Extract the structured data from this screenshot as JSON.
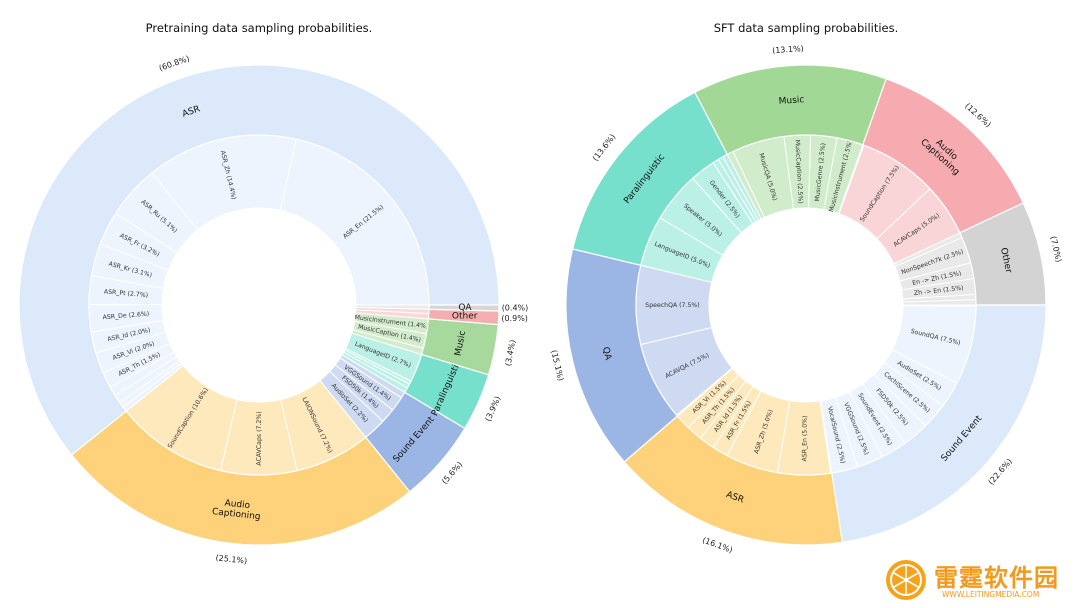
{
  "chart_data": [
    {
      "type": "sunburst",
      "title": "Pretraining data sampling probabilities.",
      "start_angle_deg": 0,
      "outer": [
        {
          "label": "ASR",
          "value": 60.8,
          "pct": "(60.8%)",
          "color": "#dbe9fa"
        },
        {
          "label": "Audio\nCaptioning",
          "value": 25.1,
          "pct": "(25.1%)",
          "color": "#fdd27a"
        },
        {
          "label": "Sound Event",
          "value": 5.6,
          "pct": "(5.6%)",
          "color": "#9bb5e4"
        },
        {
          "label": "Paralinguistic",
          "value": 3.9,
          "pct": "(3.9%)",
          "color": "#77e0cc"
        },
        {
          "label": "Music",
          "value": 3.4,
          "pct": "(3.4%)",
          "color": "#a6d99b"
        },
        {
          "label": "Other",
          "value": 0.9,
          "pct": "(0.9%)",
          "color": "#f5aeb0"
        },
        {
          "label": "QA",
          "value": 0.4,
          "pct": "(0.4%)",
          "color": "#d6d6d6"
        }
      ],
      "inner": [
        {
          "parent": 0,
          "items": [
            {
              "label": "ASR_En (21.5%)",
              "value": 21.5
            },
            {
              "label": "ASR_Zh (14.4%)",
              "value": 14.4
            },
            {
              "label": "ASR_Ru (5.1%)",
              "value": 5.1
            },
            {
              "label": "ASR_Fr (3.2%)",
              "value": 3.2
            },
            {
              "label": "ASR_Kr (3.1%)",
              "value": 3.1
            },
            {
              "label": "ASR_Pt (2.7%)",
              "value": 2.7
            },
            {
              "label": "ASR_De (2.6%)",
              "value": 2.6
            },
            {
              "label": "ASR_Id (2.0%)",
              "value": 2.0
            },
            {
              "label": "ASR_Vi (2.0%)",
              "value": 2.0
            },
            {
              "label": "ASR_Th (1.5%)",
              "value": 1.5
            },
            {
              "label": "",
              "value": 0.9
            },
            {
              "label": "",
              "value": 0.8
            },
            {
              "label": "",
              "value": 0.5
            },
            {
              "label": "",
              "value": 0.5
            }
          ]
        },
        {
          "parent": 1,
          "items": [
            {
              "label": "SoundCaption (10.6%)",
              "value": 10.6
            },
            {
              "label": "ACAVCaps (7.2%)",
              "value": 7.2
            },
            {
              "label": "LAIONSound (7.2%)",
              "value": 7.2
            }
          ]
        },
        {
          "parent": 2,
          "items": [
            {
              "label": "AudioSet (2.2%)",
              "value": 2.2
            },
            {
              "label": "FSD50k (1.4%)",
              "value": 1.4
            },
            {
              "label": "VGGSound (1.4%)",
              "value": 1.4
            },
            {
              "label": "",
              "value": 0.6
            }
          ]
        },
        {
          "parent": 3,
          "items": [
            {
              "label": "",
              "value": 0.5
            },
            {
              "label": "",
              "value": 0.4
            },
            {
              "label": "",
              "value": 0.3
            },
            {
              "label": "LanguageID (2.7%)",
              "value": 2.7
            }
          ]
        },
        {
          "parent": 4,
          "items": [
            {
              "label": "",
              "value": 0.6
            },
            {
              "label": "MusicCaption (1.4%)",
              "value": 1.4
            },
            {
              "label": "MusicInstrument (1.4%)",
              "value": 1.4
            }
          ]
        },
        {
          "parent": 5,
          "items": [
            {
              "label": "",
              "value": 0.5
            },
            {
              "label": "",
              "value": 0.4
            }
          ]
        },
        {
          "parent": 6,
          "items": [
            {
              "label": "",
              "value": 0.4
            }
          ]
        }
      ]
    },
    {
      "type": "sunburst",
      "title": "SFT data sampling probabilities.",
      "start_angle_deg": 0,
      "outer": [
        {
          "label": "Other",
          "value": 7.0,
          "pct": "(7.0%)",
          "color": "#d3d3d3"
        },
        {
          "label": "Audio\nCaptioning",
          "value": 12.6,
          "pct": "(12.6%)",
          "color": "#f5abb0"
        },
        {
          "label": "Music",
          "value": 13.1,
          "pct": "(13.1%)",
          "color": "#a2d896"
        },
        {
          "label": "Paralinguistic",
          "value": 13.6,
          "pct": "(13.6%)",
          "color": "#77e0cc"
        },
        {
          "label": "QA",
          "value": 15.1,
          "pct": "(15.1%)",
          "color": "#9bb5e4"
        },
        {
          "label": "ASR",
          "value": 16.1,
          "pct": "(16.1%)",
          "color": "#fdd27a"
        },
        {
          "label": "Sound Event",
          "value": 22.6,
          "pct": "(22.6%)",
          "color": "#dbe9fa"
        }
      ],
      "inner": [
        {
          "parent": 0,
          "items": [
            {
              "label": "",
              "value": 0.5
            },
            {
              "label": "",
              "value": 0.5
            },
            {
              "label": "Zh -> En (1.5%)",
              "value": 1.5
            },
            {
              "label": "En -> Zh (1.5%)",
              "value": 1.5
            },
            {
              "label": "NonSpeech7k (2.5%)",
              "value": 2.5
            },
            {
              "label": "",
              "value": 0.5
            }
          ]
        },
        {
          "parent": 1,
          "items": [
            {
              "label": "ACAVCaps (5.0%)",
              "value": 5.0
            },
            {
              "label": "SoundCaption (7.5%)",
              "value": 7.5
            },
            {
              "label": "",
              "value": 0.1
            }
          ]
        },
        {
          "parent": 2,
          "items": [
            {
              "label": "MusicInstrument (2.5%)",
              "value": 2.5
            },
            {
              "label": "MusicGenre (2.5%)",
              "value": 2.5
            },
            {
              "label": "MusicCaption (2.5%)",
              "value": 2.5
            },
            {
              "label": "MusicQA (5.0%)",
              "value": 5.0
            },
            {
              "label": "",
              "value": 0.6
            }
          ]
        },
        {
          "parent": 3,
          "items": [
            {
              "label": "",
              "value": 0.5
            },
            {
              "label": "",
              "value": 0.5
            },
            {
              "label": "",
              "value": 0.6
            },
            {
              "label": "Gender (2.5%)",
              "value": 2.5
            },
            {
              "label": "Speaker (5.0%)",
              "value": 5.0
            },
            {
              "label": "LanguageID (5.0%)",
              "value": 5.0
            }
          ]
        },
        {
          "parent": 4,
          "items": [
            {
              "label": "SpeechQA (7.5%)",
              "value": 7.5
            },
            {
              "label": "ACAVQA (7.5%)",
              "value": 7.5
            },
            {
              "label": "",
              "value": 0.1
            }
          ]
        },
        {
          "parent": 5,
          "items": [
            {
              "label": "ASR_Vi (1.5%)",
              "value": 1.5
            },
            {
              "label": "ASR_Th (1.5%)",
              "value": 1.5
            },
            {
              "label": "ASR_Id (1.5%)",
              "value": 1.5
            },
            {
              "label": "ASR_Fr (1.5%)",
              "value": 1.5
            },
            {
              "label": "ASR_Zh (5.0%)",
              "value": 5.0
            },
            {
              "label": "ASR_En (5.0%)",
              "value": 5.0
            },
            {
              "label": "",
              "value": 0.1
            }
          ]
        },
        {
          "parent": 6,
          "items": [
            {
              "label": "VocalSound (2.5%)",
              "value": 2.5
            },
            {
              "label": "VGGSound (2.5%)",
              "value": 2.5
            },
            {
              "label": "SoundEvent (2.5%)",
              "value": 2.5
            },
            {
              "label": "FSD50k (2.5%)",
              "value": 2.5
            },
            {
              "label": "CochlScene (2.5%)",
              "value": 2.5
            },
            {
              "label": "AudioSet (2.5%)",
              "value": 2.5
            },
            {
              "label": "SoundQA (7.5%)",
              "value": 7.5
            },
            {
              "label": "",
              "value": 0.1
            }
          ]
        }
      ]
    }
  ],
  "watermark": {
    "text": "雷霆软件园",
    "subtext": "WWW.LEITINGMEDIA.COM"
  }
}
